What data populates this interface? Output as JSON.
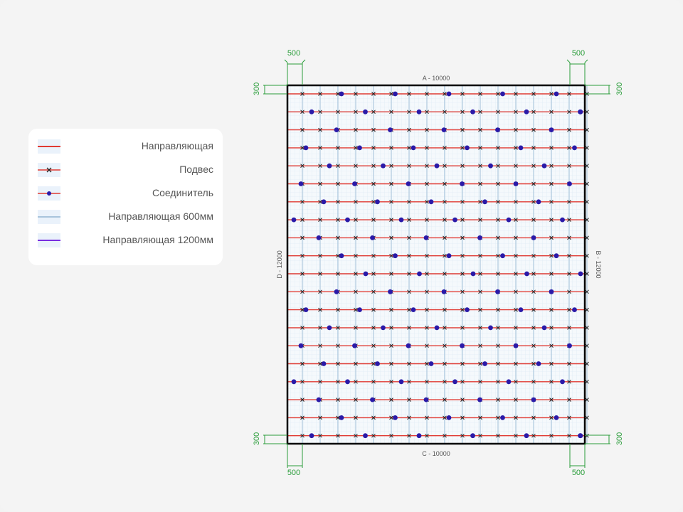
{
  "legend": {
    "items": [
      {
        "label": "Направляющая",
        "icon": "red-line-icon"
      },
      {
        "label": "Подвес",
        "icon": "hanger-cross-icon"
      },
      {
        "label": "Соединитель",
        "icon": "connector-dot-icon"
      },
      {
        "label": "Направляющая 600мм",
        "icon": "light-blue-line-icon"
      },
      {
        "label": "Направляющая 1200мм",
        "icon": "purple-line-icon"
      }
    ]
  },
  "plan": {
    "sides": {
      "top": "A - 10000",
      "right": "B - 12000",
      "bottom": "C - 10000",
      "left": "D - 12000"
    },
    "dimensions": {
      "offset_x": "500",
      "offset_y": "300"
    },
    "colors": {
      "main_runner": "#e03a33",
      "hanger": "#222222",
      "connector": "#2a1aa8",
      "runner_600": "#a8c4dc",
      "runner_1200": "#7a2ee0",
      "dimension": "#2a9d3a",
      "border": "#000000"
    }
  }
}
